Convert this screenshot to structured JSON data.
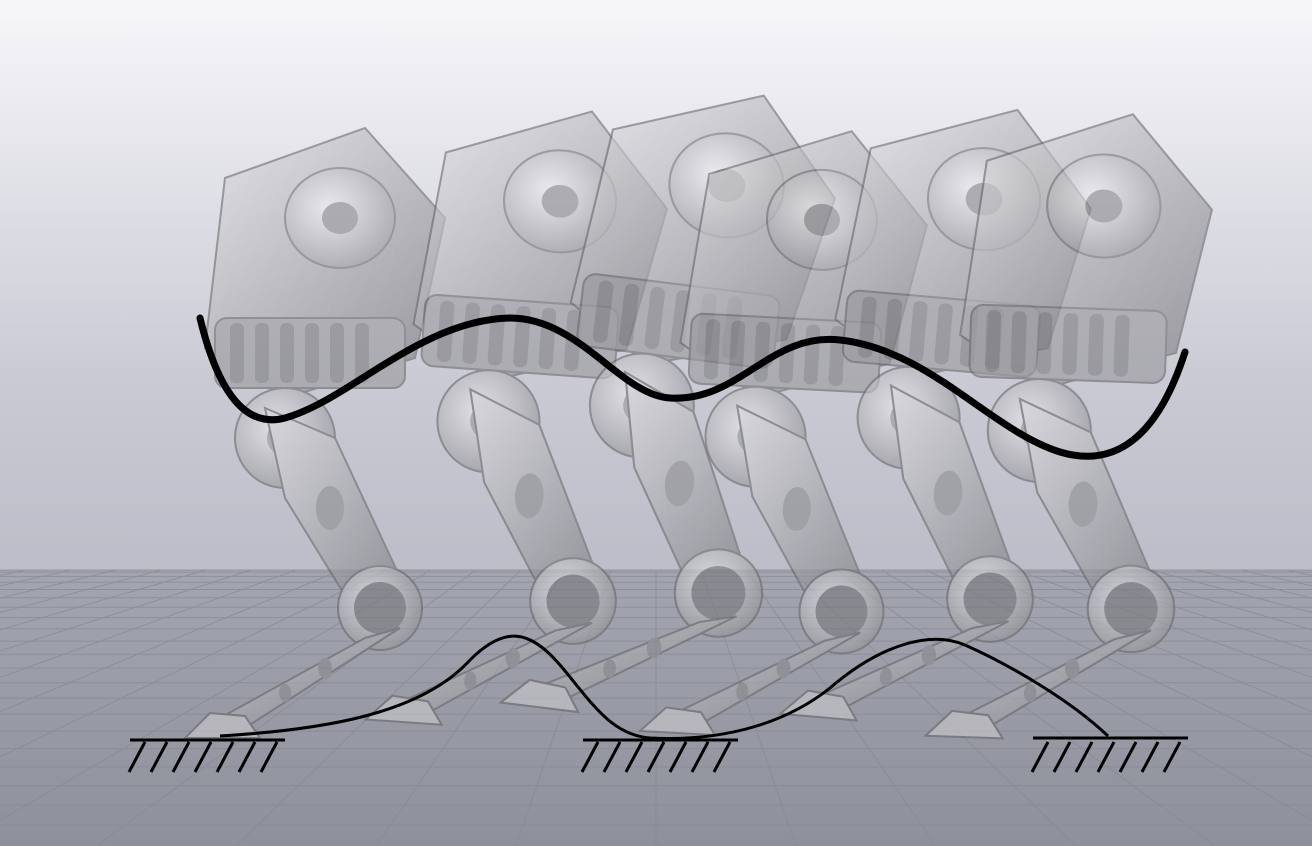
{
  "scene": {
    "kind": "multi-exposure robot leg gait sequence",
    "ghost_count": 6,
    "ground_contacts": 3,
    "colors": {
      "sky_top": "#f4f4f7",
      "sky_bottom": "#a9acb8",
      "floor": "#a2a4ae",
      "grid_line": "#8c8e98",
      "robot_body": "#b5b5b8",
      "robot_shadow": "#6d6d72",
      "trajectory": "#000000"
    },
    "overlays": {
      "body_trajectory": "body-path",
      "foot_trajectory": "foot-path",
      "ground_symbol": "hatched-ground"
    }
  }
}
